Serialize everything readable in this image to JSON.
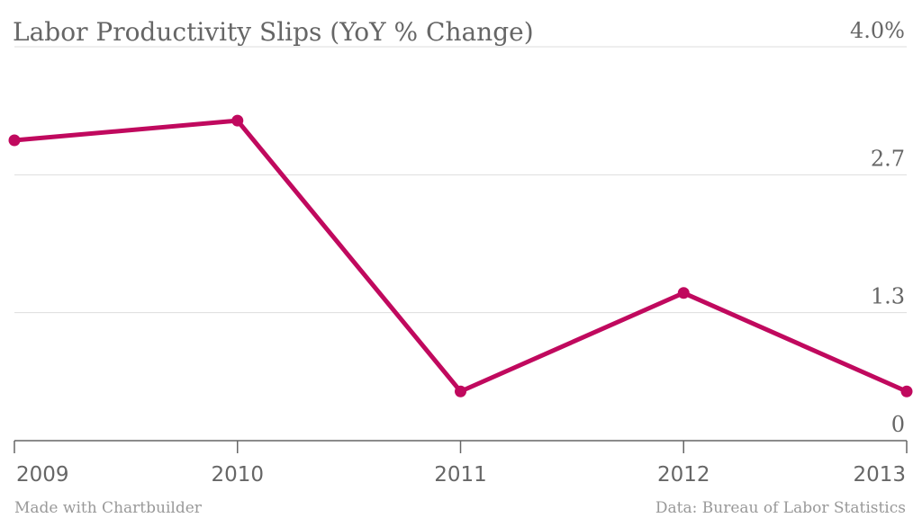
{
  "chart_data": {
    "type": "line",
    "title": "Labor Productivity Slips (YoY % Change)",
    "x": [
      "2009",
      "2010",
      "2011",
      "2012",
      "2013"
    ],
    "series": [
      {
        "values": [
          3.05,
          3.25,
          0.5,
          1.5,
          0.5
        ],
        "color": "#c0095e"
      }
    ],
    "ylim": [
      0,
      4.0
    ],
    "yticks": [
      0,
      1.3,
      2.7,
      4.0
    ],
    "ytick_labels": [
      "0",
      "1.3",
      "2.7",
      "4.0%"
    ],
    "ytick_position": "right",
    "grid": true,
    "xlabel": "",
    "ylabel": ""
  },
  "footer": {
    "credit": "Made with Chartbuilder",
    "source": "Data: Bureau of Labor Statistics"
  }
}
